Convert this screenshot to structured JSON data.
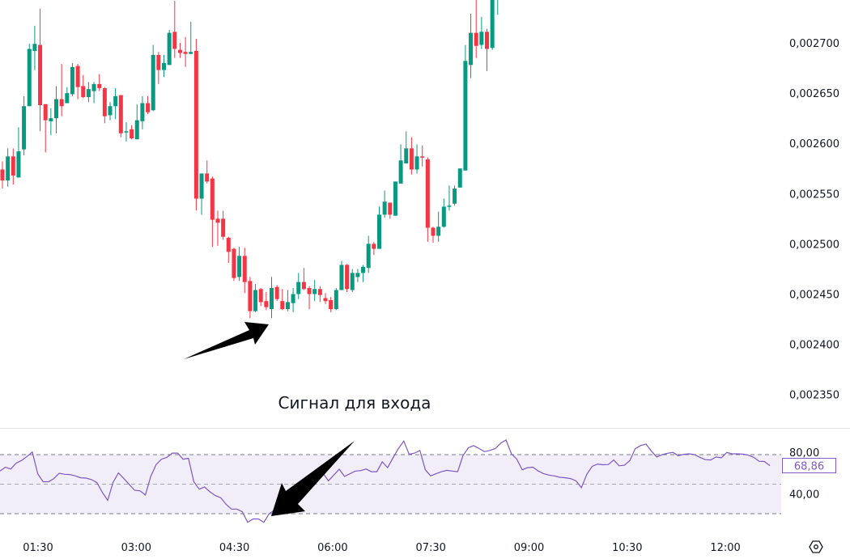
{
  "chart_data": [
    {
      "type": "candlestick",
      "colors": {
        "up": "#089981",
        "down": "#f23645"
      },
      "price_axis": {
        "tick_labels": [
          "0,002700",
          "0,002650",
          "0,002600",
          "0,002550",
          "0,002500",
          "0,002450",
          "0,002400",
          "0,002350"
        ],
        "ticks": [
          0.0027,
          0.00265,
          0.0026,
          0.00255,
          0.0025,
          0.00245,
          0.0024,
          0.00235
        ]
      },
      "time_axis": {
        "tick_labels": [
          "01:30",
          "03:00",
          "04:30",
          "06:00",
          "07:30",
          "09:00",
          "10:30",
          "12:00"
        ]
      },
      "candle_fields": [
        "open",
        "high",
        "low",
        "close"
      ],
      "candles": [
        [
          0.002574,
          0.002582,
          0.002555,
          0.002563
        ],
        [
          0.002563,
          0.002595,
          0.002557,
          0.002587
        ],
        [
          0.002587,
          0.002595,
          0.002559,
          0.002568
        ],
        [
          0.002566,
          0.002616,
          0.002566,
          0.002592
        ],
        [
          0.002594,
          0.002647,
          0.002588,
          0.002637
        ],
        [
          0.002637,
          0.002699,
          0.002637,
          0.002694
        ],
        [
          0.002692,
          0.002717,
          0.002673,
          0.002699
        ],
        [
          0.002698,
          0.002734,
          0.002612,
          0.002638
        ],
        [
          0.002639,
          0.002639,
          0.002591,
          0.002623
        ],
        [
          0.002622,
          0.002635,
          0.002608,
          0.002625
        ],
        [
          0.002625,
          0.002657,
          0.00261,
          0.002644
        ],
        [
          0.002644,
          0.002679,
          0.002627,
          0.002637
        ],
        [
          0.00264,
          0.002656,
          0.00264,
          0.00265
        ],
        [
          0.002649,
          0.00268,
          0.002647,
          0.002676
        ],
        [
          0.002677,
          0.002679,
          0.002644,
          0.002656
        ],
        [
          0.002657,
          0.002668,
          0.002645,
          0.002646
        ],
        [
          0.002646,
          0.002661,
          0.002641,
          0.002654
        ],
        [
          0.002652,
          0.002661,
          0.00264,
          0.002659
        ],
        [
          0.002659,
          0.002669,
          0.002652,
          0.002655
        ],
        [
          0.002655,
          0.002656,
          0.00262,
          0.002627
        ],
        [
          0.002628,
          0.002641,
          0.002623,
          0.002637
        ],
        [
          0.002637,
          0.002655,
          0.002624,
          0.002647
        ],
        [
          0.002648,
          0.002648,
          0.002606,
          0.00261
        ],
        [
          0.002611,
          0.002621,
          0.002602,
          0.002612
        ],
        [
          0.002614,
          0.002618,
          0.002604,
          0.002605
        ],
        [
          0.002604,
          0.002639,
          0.002604,
          0.002623
        ],
        [
          0.002622,
          0.002647,
          0.002614,
          0.00264
        ],
        [
          0.00264,
          0.002647,
          0.002629,
          0.002631
        ],
        [
          0.002633,
          0.002698,
          0.002632,
          0.002688
        ],
        [
          0.002688,
          0.002691,
          0.002659,
          0.002673
        ],
        [
          0.002673,
          0.002688,
          0.002666,
          0.00268
        ],
        [
          0.002678,
          0.002713,
          0.002678,
          0.00271
        ],
        [
          0.002711,
          0.002742,
          0.002685,
          0.002694
        ],
        [
          0.002693,
          0.0027,
          0.002685,
          0.00269
        ],
        [
          0.002691,
          0.002706,
          0.002676,
          0.002689
        ],
        [
          0.002689,
          0.002721,
          0.002689,
          0.002691
        ],
        [
          0.002692,
          0.002704,
          0.002533,
          0.002545
        ],
        [
          0.002545,
          0.00257,
          0.002529,
          0.00257
        ],
        [
          0.00257,
          0.002583,
          0.00256,
          0.002562
        ],
        [
          0.002565,
          0.002567,
          0.002497,
          0.002524
        ],
        [
          0.002525,
          0.002533,
          0.002498,
          0.002521
        ],
        [
          0.002525,
          0.002533,
          0.002504,
          0.002507
        ],
        [
          0.002506,
          0.002507,
          0.002481,
          0.002492
        ],
        [
          0.002495,
          0.002496,
          0.002463,
          0.002466
        ],
        [
          0.002467,
          0.002497,
          0.002463,
          0.002488
        ],
        [
          0.002488,
          0.002496,
          0.002451,
          0.002462
        ],
        [
          0.002463,
          0.002467,
          0.002426,
          0.002433
        ],
        [
          0.002433,
          0.00246,
          0.002432,
          0.002454
        ],
        [
          0.002455,
          0.002456,
          0.002438,
          0.002442
        ],
        [
          0.002443,
          0.002452,
          0.002434,
          0.002437
        ],
        [
          0.002435,
          0.002467,
          0.002426,
          0.002456
        ],
        [
          0.002457,
          0.002459,
          0.002443,
          0.002445
        ],
        [
          0.002443,
          0.002455,
          0.002434,
          0.002435
        ],
        [
          0.002435,
          0.002454,
          0.002433,
          0.002442
        ],
        [
          0.002441,
          0.002456,
          0.002432,
          0.00245
        ],
        [
          0.00245,
          0.002471,
          0.002445,
          0.002462
        ],
        [
          0.002462,
          0.002476,
          0.002454,
          0.002455
        ],
        [
          0.002456,
          0.002458,
          0.002435,
          0.00245
        ],
        [
          0.00245,
          0.002464,
          0.002443,
          0.002455
        ],
        [
          0.002455,
          0.002458,
          0.002442,
          0.002449
        ],
        [
          0.002446,
          0.002451,
          0.00244,
          0.002443
        ],
        [
          0.002444,
          0.002447,
          0.002432,
          0.002435
        ],
        [
          0.002435,
          0.002456,
          0.002434,
          0.002454
        ],
        [
          0.002454,
          0.002483,
          0.002454,
          0.002479
        ],
        [
          0.002479,
          0.00248,
          0.002452,
          0.002455
        ],
        [
          0.002454,
          0.002475,
          0.002452,
          0.002471
        ],
        [
          0.002467,
          0.002475,
          0.002462,
          0.002471
        ],
        [
          0.002471,
          0.002479,
          0.002462,
          0.002477
        ],
        [
          0.002476,
          0.002508,
          0.002471,
          0.0025
        ],
        [
          0.0025,
          0.002502,
          0.002489,
          0.002495
        ],
        [
          0.002495,
          0.002537,
          0.002495,
          0.002529
        ],
        [
          0.002529,
          0.002553,
          0.002526,
          0.002542
        ],
        [
          0.002541,
          0.002541,
          0.002525,
          0.002529
        ],
        [
          0.002528,
          0.002562,
          0.002528,
          0.002562
        ],
        [
          0.00256,
          0.002599,
          0.00256,
          0.002583
        ],
        [
          0.00258,
          0.002612,
          0.00258,
          0.002595
        ],
        [
          0.002595,
          0.002606,
          0.002569,
          0.002574
        ],
        [
          0.002574,
          0.002599,
          0.00257,
          0.002587
        ],
        [
          0.002587,
          0.002598,
          0.002577,
          0.002586
        ],
        [
          0.002584,
          0.002586,
          0.002502,
          0.002516
        ],
        [
          0.002516,
          0.002517,
          0.002501,
          0.002508
        ],
        [
          0.002508,
          0.002532,
          0.002502,
          0.002517
        ],
        [
          0.002517,
          0.002545,
          0.002516,
          0.002537
        ],
        [
          0.002537,
          0.002558,
          0.002533,
          0.002538
        ],
        [
          0.00254,
          0.002558,
          0.002538,
          0.002555
        ],
        [
          0.002556,
          0.002575,
          0.002556,
          0.002575
        ],
        [
          0.002573,
          0.002698,
          0.002573,
          0.002682
        ],
        [
          0.002678,
          0.002729,
          0.002665,
          0.00271
        ],
        [
          0.00271,
          0.002743,
          0.002685,
          0.002697
        ],
        [
          0.002698,
          0.002726,
          0.002694,
          0.002711
        ],
        [
          0.002711,
          0.002714,
          0.002672,
          0.002694
        ],
        [
          0.002695,
          0.00275,
          0.002693,
          0.002743
        ],
        [
          0.002745,
          0.00277,
          0.002728,
          0.002765
        ]
      ]
    },
    {
      "type": "line",
      "indicator": "RSI",
      "color": "#7e57c2",
      "levels": [
        80,
        50,
        20
      ],
      "level_labels": [
        "80,00",
        "40,00"
      ],
      "last_value_label": "68,86",
      "values": [
        63.3,
        67.3,
        65.4,
        71.4,
        74.1,
        78.1,
        82.7,
        60.6,
        52.5,
        52.5,
        55.7,
        61.1,
        60.0,
        59.8,
        58.4,
        56.5,
        56.2,
        54.6,
        51.6,
        41.7,
        33.6,
        51.9,
        61.4,
        55.7,
        49.8,
        43.8,
        43.3,
        39.0,
        57.9,
        70.0,
        75.4,
        77.3,
        81.6,
        81.6,
        75.4,
        76.2,
        52.5,
        44.9,
        47.1,
        42.2,
        38.4,
        36.3,
        29.5,
        24.7,
        24.7,
        22.0,
        11.2,
        14.7,
        14.7,
        11.2,
        20.1,
        23.6,
        20.1,
        24.1,
        30.3,
        39.0,
        47.9,
        53.8,
        54.6,
        54.6,
        61.1,
        53.5,
        59.2,
        65.2,
        57.9,
        60.6,
        63.3,
        63.8,
        65.4,
        62.7,
        62.7,
        72.7,
        66.8,
        76.8,
        86.2,
        93.8,
        80.3,
        81.6,
        84.3,
        64.6,
        58.4,
        60.6,
        62.7,
        64.1,
        63.3,
        62.7,
        78.9,
        87.0,
        89.2,
        86.2,
        83.0,
        84.3,
        86.2,
        91.6,
        94.9,
        80.8,
        75.4,
        64.6,
        66.8,
        67.3,
        63.3,
        60.6,
        59.2,
        58.4,
        57.0,
        56.5,
        55.7,
        53.3,
        46.5,
        60.0,
        68.1,
        70.5,
        69.7,
        70.0,
        74.6,
        68.7,
        69.2,
        74.1,
        86.2,
        89.2,
        90.8,
        83.5,
        77.6,
        80.0,
        81.4,
        82.2,
        78.9,
        80.3,
        80.8,
        80.0,
        77.3,
        74.9,
        74.6,
        77.6,
        76.8,
        82.2,
        80.8,
        80.8,
        80.5,
        79.5,
        77.3,
        73.3,
        73.0,
        68.86
      ]
    }
  ],
  "annotation": {
    "text": "Сигнал для входа"
  },
  "settings_icon": "hexagon-settings-icon"
}
